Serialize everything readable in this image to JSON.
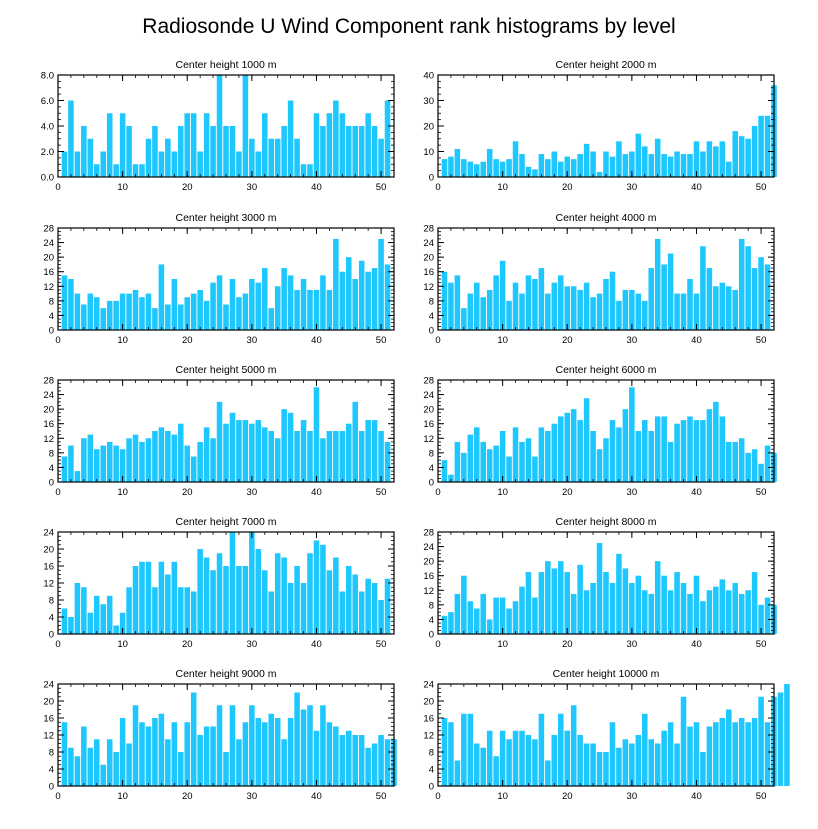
{
  "chart_data": {
    "type": "bar",
    "title": "Radiosonde U Wind Component rank histograms by level",
    "xlim": [
      0,
      52
    ],
    "x_ticks": [
      0,
      10,
      20,
      30,
      40,
      50
    ],
    "bar_color": "#1ec8ff",
    "grid": false,
    "panels": [
      {
        "title": "Center height 1000 m",
        "ylim": [
          0,
          8
        ],
        "y_ticks": [
          "0.0",
          "2.0",
          "4.0",
          "6.0",
          "8.0"
        ],
        "values": [
          2,
          6,
          2,
          4,
          3,
          1,
          2,
          5,
          1,
          5,
          4,
          1,
          1,
          3,
          4,
          2,
          3,
          2,
          4,
          5,
          5,
          2,
          5,
          4,
          8,
          4,
          4,
          2,
          8,
          3,
          2,
          5,
          3,
          3,
          4,
          6,
          3,
          1,
          1,
          5,
          4,
          5,
          6,
          5,
          4,
          4,
          4,
          5,
          4,
          3,
          6
        ]
      },
      {
        "title": "Center height 2000 m",
        "ylim": [
          0,
          40
        ],
        "y_ticks": [
          "0",
          "10",
          "20",
          "30",
          "40"
        ],
        "values": [
          7,
          8,
          11,
          7,
          6,
          5,
          6,
          11,
          7,
          6,
          7,
          14,
          9,
          4,
          3,
          9,
          7,
          10,
          6,
          8,
          7,
          9,
          13,
          10,
          2,
          10,
          8,
          14,
          9,
          10,
          17,
          12,
          9,
          15,
          9,
          8,
          10,
          9,
          9,
          14,
          10,
          14,
          12,
          14,
          6,
          18,
          16,
          15,
          20,
          24,
          24,
          36
        ]
      },
      {
        "title": "Center height 3000 m",
        "ylim": [
          0,
          28
        ],
        "y_ticks": [
          "0",
          "4",
          "8",
          "12",
          "16",
          "20",
          "24",
          "28"
        ],
        "values": [
          15,
          14,
          10,
          7,
          10,
          9,
          6,
          8,
          8,
          10,
          10,
          11,
          9,
          10,
          6,
          18,
          7,
          14,
          7,
          9,
          10,
          11,
          8,
          13,
          15,
          7,
          14,
          9,
          10,
          14,
          13,
          17,
          6,
          12,
          17,
          15,
          11,
          14,
          11,
          11,
          15,
          11,
          25,
          16,
          20,
          14,
          19,
          16,
          17,
          25,
          18
        ]
      },
      {
        "title": "Center height 4000 m",
        "ylim": [
          0,
          28
        ],
        "y_ticks": [
          "0",
          "4",
          "8",
          "12",
          "16",
          "20",
          "24",
          "28"
        ],
        "values": [
          16,
          13,
          15,
          6,
          10,
          13,
          9,
          11,
          15,
          19,
          8,
          13,
          10,
          15,
          14,
          17,
          10,
          13,
          15,
          12,
          12,
          11,
          13,
          9,
          10,
          14,
          16,
          8,
          11,
          11,
          10,
          8,
          17,
          25,
          18,
          21,
          10,
          10,
          14,
          10,
          23,
          17,
          12,
          13,
          12,
          11,
          25,
          23,
          17,
          20,
          18
        ]
      },
      {
        "title": "Center height 5000 m",
        "ylim": [
          0,
          28
        ],
        "y_ticks": [
          "0",
          "4",
          "8",
          "12",
          "16",
          "20",
          "24",
          "28"
        ],
        "values": [
          7,
          10,
          3,
          12,
          13,
          9,
          10,
          11,
          10,
          9,
          12,
          13,
          11,
          12,
          14,
          15,
          14,
          13,
          16,
          10,
          7,
          11,
          15,
          12,
          22,
          16,
          19,
          17,
          17,
          16,
          17,
          15,
          14,
          12,
          20,
          19,
          14,
          17,
          14,
          26,
          12,
          14,
          14,
          14,
          16,
          22,
          14,
          17,
          17,
          14,
          11
        ]
      },
      {
        "title": "Center height 6000 m",
        "ylim": [
          0,
          28
        ],
        "y_ticks": [
          "0",
          "4",
          "8",
          "12",
          "16",
          "20",
          "24",
          "28"
        ],
        "values": [
          6,
          2,
          11,
          8,
          13,
          15,
          11,
          9,
          10,
          14,
          7,
          15,
          11,
          12,
          7,
          15,
          14,
          16,
          18,
          19,
          20,
          17,
          23,
          14,
          9,
          12,
          17,
          15,
          20,
          26,
          14,
          17,
          14,
          18,
          18,
          11,
          16,
          17,
          18,
          17,
          17,
          20,
          22,
          18,
          11,
          11,
          12,
          8,
          9,
          5,
          10,
          8
        ]
      },
      {
        "title": "Center height 7000 m",
        "ylim": [
          0,
          24
        ],
        "y_ticks": [
          "0",
          "4",
          "8",
          "12",
          "16",
          "20",
          "24"
        ],
        "values": [
          6,
          4,
          12,
          11,
          5,
          9,
          7,
          9,
          2,
          5,
          11,
          16,
          17,
          17,
          11,
          17,
          14,
          17,
          11,
          11,
          10,
          20,
          18,
          15,
          19,
          16,
          24,
          16,
          16,
          24,
          20,
          15,
          10,
          19,
          18,
          12,
          16,
          12,
          19,
          22,
          21,
          15,
          18,
          10,
          16,
          14,
          10,
          13,
          12,
          8,
          13
        ]
      },
      {
        "title": "Center height 8000 m",
        "ylim": [
          0,
          28
        ],
        "y_ticks": [
          "0",
          "4",
          "8",
          "12",
          "16",
          "20",
          "24",
          "28"
        ],
        "values": [
          5,
          6,
          11,
          16,
          9,
          7,
          11,
          4,
          10,
          10,
          7,
          9,
          13,
          17,
          10,
          17,
          20,
          18,
          20,
          17,
          11,
          19,
          12,
          14,
          25,
          17,
          14,
          22,
          18,
          14,
          16,
          12,
          11,
          20,
          16,
          12,
          17,
          14,
          11,
          16,
          9,
          12,
          13,
          15,
          12,
          14,
          11,
          12,
          17,
          8,
          10,
          8
        ]
      },
      {
        "title": "Center height 9000 m",
        "ylim": [
          0,
          24
        ],
        "y_ticks": [
          "0",
          "4",
          "8",
          "12",
          "16",
          "20",
          "24"
        ],
        "values": [
          15,
          9,
          7,
          14,
          9,
          11,
          5,
          11,
          8,
          16,
          10,
          19,
          15,
          14,
          16,
          17,
          11,
          15,
          8,
          15,
          22,
          12,
          14,
          14,
          19,
          8,
          19,
          11,
          15,
          19,
          16,
          15,
          17,
          16,
          11,
          16,
          22,
          18,
          19,
          13,
          19,
          15,
          14,
          12,
          13,
          12,
          12,
          9,
          10,
          12,
          11,
          11
        ]
      },
      {
        "title": "Center height 10000 m",
        "ylim": [
          0,
          24
        ],
        "y_ticks": [
          "0",
          "4",
          "8",
          "12",
          "16",
          "20",
          "24"
        ],
        "values": [
          16,
          15,
          6,
          17,
          17,
          10,
          9,
          13,
          7,
          13,
          11,
          13,
          13,
          12,
          11,
          17,
          6,
          12,
          17,
          13,
          19,
          12,
          10,
          10,
          8,
          8,
          15,
          9,
          11,
          10,
          12,
          17,
          11,
          10,
          13,
          15,
          10,
          21,
          14,
          15,
          8,
          14,
          15,
          16,
          18,
          15,
          16,
          15,
          16,
          21,
          15,
          21,
          22,
          24
        ]
      }
    ]
  }
}
